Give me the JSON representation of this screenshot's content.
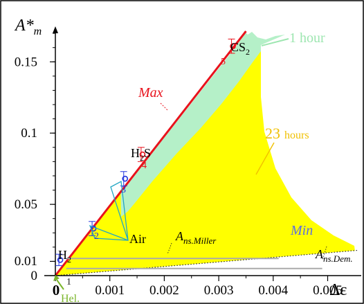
{
  "chart_data": {
    "type": "scatter",
    "title": "",
    "xlabel": "Δε",
    "ylabel": "A*m",
    "xlim": [
      0,
      0.0055
    ],
    "ylim": [
      0,
      0.18
    ],
    "grid": false,
    "x_ticks": [
      {
        "value": 0,
        "label": "0"
      },
      {
        "value": 0.001,
        "label": "0.001"
      },
      {
        "value": 0.002,
        "label": "0.002"
      },
      {
        "value": 0.003,
        "label": "0.003"
      },
      {
        "value": 0.004,
        "label": "0.004"
      },
      {
        "value": 0.005,
        "label": "0.005"
      }
    ],
    "y_ticks": [
      {
        "value": 0,
        "label": "0"
      },
      {
        "value": 0.01,
        "label": "0.01"
      },
      {
        "value": 0.05,
        "label": "0.05"
      },
      {
        "value": 0.1,
        "label": "0.1"
      },
      {
        "value": 0.15,
        "label": "0.15"
      }
    ],
    "colors": {
      "max_line": "#e8121c",
      "min_line": "#5b6ee1",
      "one_hour": "#b5f0c8",
      "twenty_three_hours": "#ffff00",
      "points": "#2233dd",
      "air": "#22a6c4",
      "label_23": "#f0c000",
      "label_1h": "#9de6b0",
      "helium": "#7ab52a",
      "miller": "#aaaaaa"
    },
    "regions": [
      {
        "name": "1 hour",
        "label": "1 hour"
      },
      {
        "name": "23 hours",
        "label_number": "23",
        "label_unit": "hours"
      }
    ],
    "lines": [
      {
        "name": "Max",
        "label": "Max",
        "slope": 49
      },
      {
        "name": "Min",
        "label": "Min",
        "slope": 3.2
      },
      {
        "name": "Ans.Miller",
        "label_main": "A",
        "label_sub": "ns.Miller",
        "y": 0.012
      },
      {
        "name": "Ans.Dem.",
        "label_main": "A",
        "label_sub": "ns.Dem.",
        "y": 0.005
      }
    ],
    "points": [
      {
        "label": "H",
        "sub": "2",
        "num": "1",
        "x": 9e-05,
        "y": 0.011,
        "err": 0.004
      },
      {
        "label": "",
        "sub": "",
        "num": "2",
        "x": 0.0007,
        "y": 0.033,
        "err": 0.005
      },
      {
        "label": "",
        "sub": "",
        "num": "3",
        "x": 0.00128,
        "y": 0.068,
        "err": 0.005
      },
      {
        "label": "H",
        "sub": "2",
        "tail": "S",
        "num": "4",
        "x": 0.0016,
        "y": 0.085,
        "err": 0.005
      },
      {
        "label": "CS",
        "sub": "2",
        "num": "5",
        "x": 0.00326,
        "y": 0.161,
        "err": 0.005
      }
    ],
    "annotations": {
      "air": "Air",
      "helium": "Hel."
    }
  }
}
